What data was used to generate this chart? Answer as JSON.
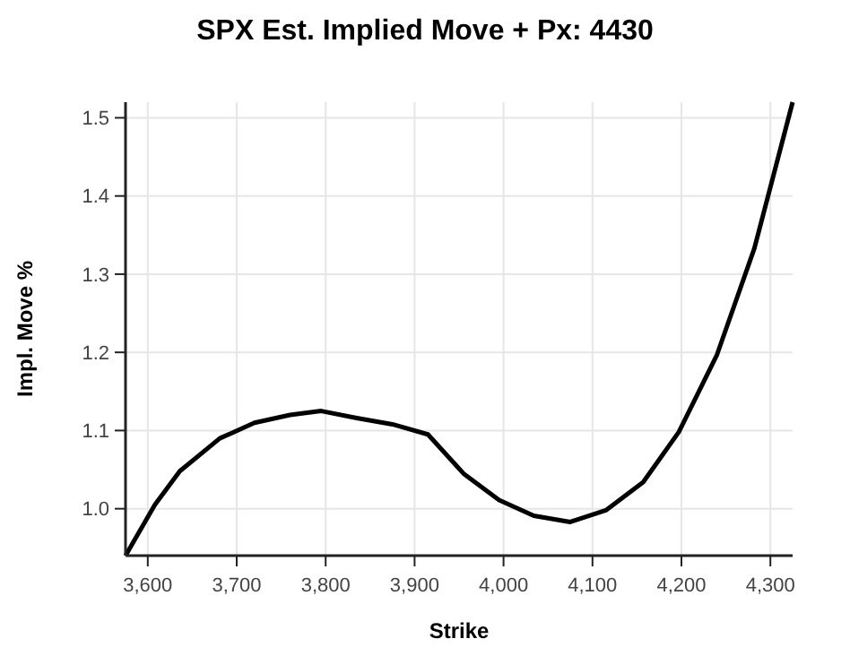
{
  "chart_data": {
    "type": "line",
    "title": "SPX Est. Implied Move + Px: 4430",
    "xlabel": "Strike",
    "ylabel": "Impl. Move %",
    "x": [
      3575,
      3608,
      3636,
      3681,
      3720,
      3760,
      3795,
      3835,
      3875,
      3915,
      3955,
      3995,
      4034,
      4075,
      4115,
      4157,
      4197,
      4240,
      4282,
      4325
    ],
    "series": [
      {
        "color": "#000000",
        "values": [
          0.94,
          1.005,
          1.048,
          1.09,
          1.11,
          1.12,
          1.125,
          1.116,
          1.108,
          1.095,
          1.045,
          1.011,
          0.991,
          0.983,
          0.998,
          1.034,
          1.098,
          1.197,
          1.333,
          1.52
        ]
      }
    ],
    "xlim": [
      3575,
      4325
    ],
    "ylim": [
      0.94,
      1.52
    ],
    "xticks": [
      {
        "value": 3600,
        "label": "3,600"
      },
      {
        "value": 3700,
        "label": "3,700"
      },
      {
        "value": 3800,
        "label": "3,800"
      },
      {
        "value": 3900,
        "label": "3,900"
      },
      {
        "value": 4000,
        "label": "4,000"
      },
      {
        "value": 4100,
        "label": "4,100"
      },
      {
        "value": 4200,
        "label": "4,200"
      },
      {
        "value": 4300,
        "label": "4,300"
      }
    ],
    "yticks": [
      {
        "value": 1,
        "label": "1.0"
      },
      {
        "value": 1.1,
        "label": "1.1"
      },
      {
        "value": 1.2,
        "label": "1.2"
      },
      {
        "value": 1.3,
        "label": "1.3"
      },
      {
        "value": 1.4,
        "label": "1.4"
      },
      {
        "value": 1.5,
        "label": "1.5"
      }
    ],
    "grid": true,
    "line_style": "solid",
    "marker": "none"
  }
}
